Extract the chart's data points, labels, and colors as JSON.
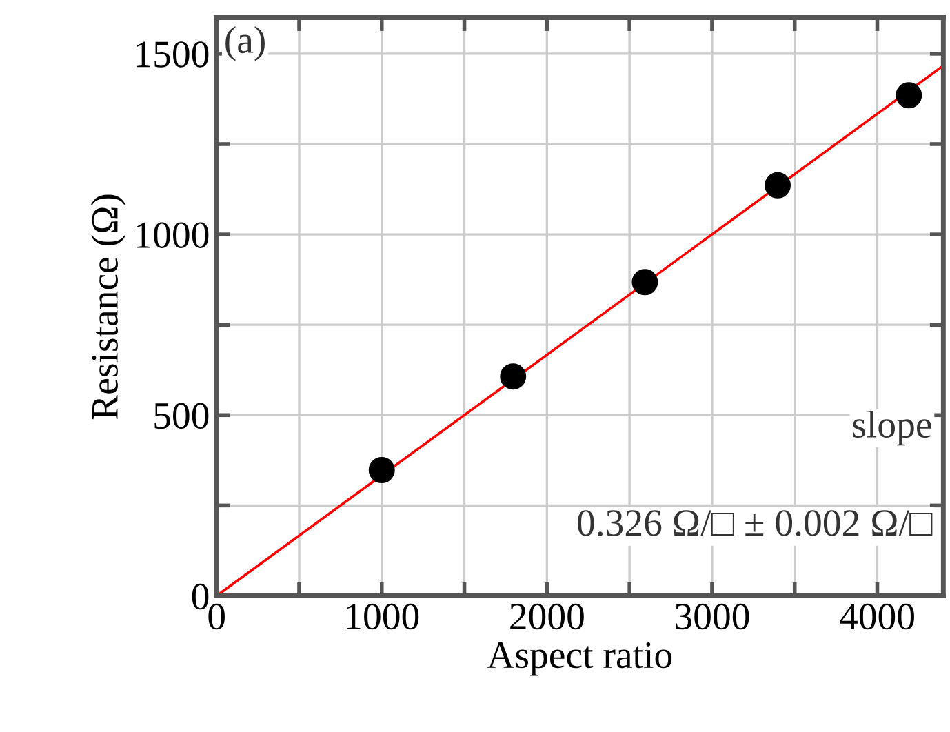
{
  "chart_data": {
    "type": "scatter",
    "xlabel": "Aspect ratio",
    "ylabel": "Resistance (Ω)",
    "annotations": [
      "(a)",
      "slope",
      "0.326 Ω/□ ± 0.002 Ω/□"
    ],
    "series": [
      {
        "color": "#000000",
        "marker": "circle",
        "x": [
          1000,
          1795,
          2593,
          3397,
          4191
        ],
        "values": [
          348,
          607,
          868,
          1136,
          1385
        ]
      },
      {
        "type": "line",
        "color": "#ff0000",
        "marker": "none",
        "line_style": "solid",
        "x": [
          0,
          4400
        ],
        "values": [
          0,
          1467
        ]
      }
    ],
    "xlim": [
      0,
      4400
    ],
    "ylim": [
      0,
      1600
    ],
    "xticks": [
      0,
      {
        "value": 500,
        "label": null
      },
      1000,
      {
        "value": 1500,
        "label": null
      },
      2000,
      {
        "value": 2500,
        "label": null
      },
      3000,
      {
        "value": 3500,
        "label": null
      },
      4000
    ],
    "yticks": [
      0,
      {
        "value": 250,
        "label": null
      },
      500,
      {
        "value": 750,
        "label": null
      },
      1000,
      {
        "value": 1250,
        "label": null
      },
      1500
    ],
    "grid": true
  }
}
